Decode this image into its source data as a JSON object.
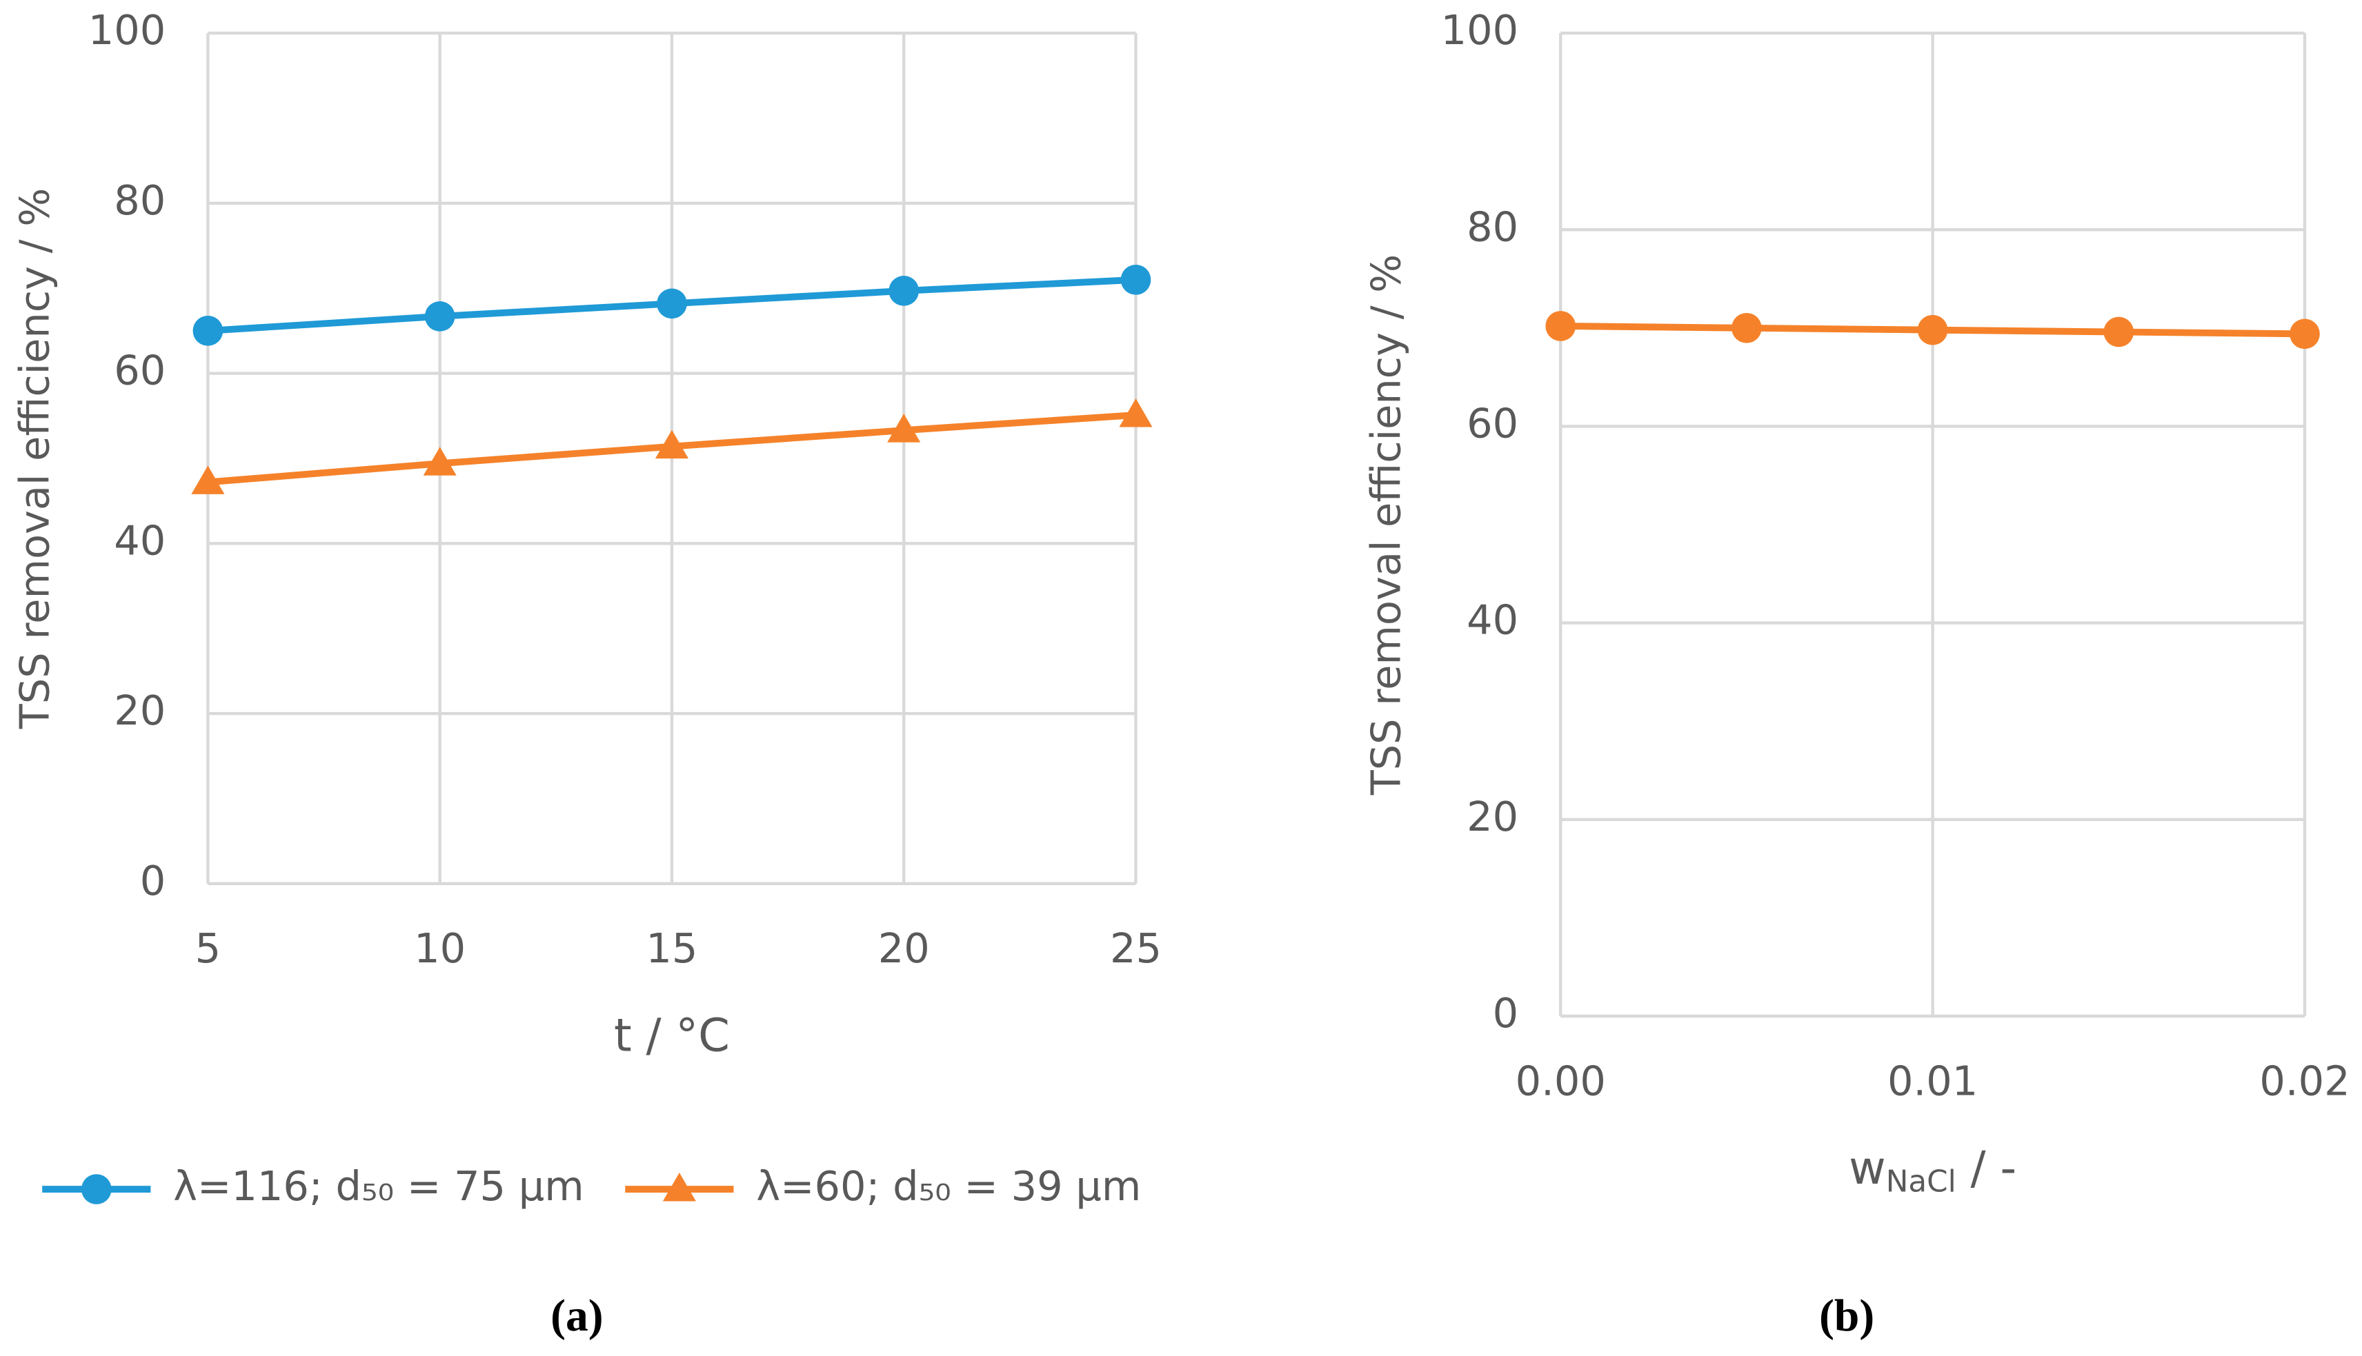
{
  "chart_data": [
    {
      "type": "line",
      "caption": "(a)",
      "xlabel": [
        "t / °C"
      ],
      "ylabel": "TSS removal efficiency / %",
      "x": [
        5,
        10,
        15,
        20,
        25
      ],
      "xlim": [
        5,
        25
      ],
      "xticks": [
        5,
        10,
        15,
        20,
        25
      ],
      "ylim": [
        0,
        100
      ],
      "yticks": [
        0,
        20,
        40,
        60,
        80,
        100
      ],
      "grid": true,
      "legend": "bottom",
      "series": [
        {
          "name": "λ=116; d₅₀ = 75 µm",
          "color": "#1f9ad6",
          "marker": "circle",
          "values": [
            65,
            66.7,
            68.2,
            69.7,
            71
          ]
        },
        {
          "name": "λ=60; d₅₀ = 39 µm",
          "color": "#f5822a",
          "marker": "triangle",
          "values": [
            47.2,
            49.4,
            51.4,
            53.3,
            55.1
          ]
        }
      ]
    },
    {
      "type": "line",
      "caption": "(b)",
      "xlabel": [
        "w",
        "NaCl",
        " / -"
      ],
      "ylabel": "TSS removal efficiency / %",
      "x": [
        0,
        0.005,
        0.01,
        0.015,
        0.02
      ],
      "xlim": [
        0,
        0.02
      ],
      "xticks": [
        {
          "value": 0,
          "label": "0.00"
        },
        0.01,
        0.02
      ],
      "ylim": [
        0,
        100
      ],
      "yticks": [
        0,
        20,
        40,
        60,
        80,
        100
      ],
      "grid": true,
      "series": [
        {
          "color": "#f5822a",
          "marker": "circle",
          "values": [
            70.2,
            70.0,
            69.8,
            69.6,
            69.4
          ]
        }
      ]
    }
  ]
}
